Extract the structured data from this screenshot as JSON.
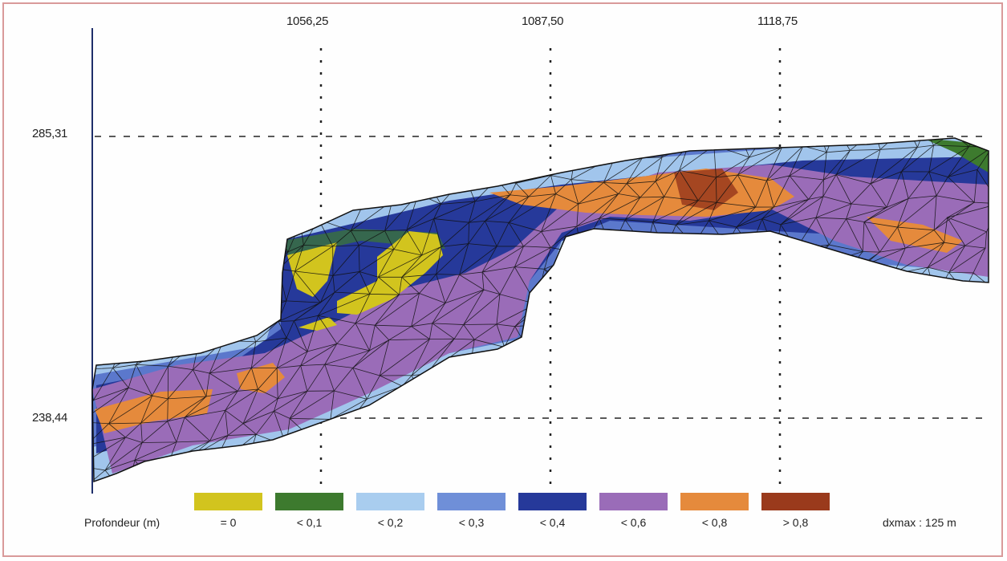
{
  "axes": {
    "x_ticks": [
      "1056,25",
      "1087,50",
      "1118,75"
    ],
    "y_ticks": [
      "285,31",
      "238,44"
    ]
  },
  "legend": {
    "title": "Profondeur (m)",
    "items": [
      {
        "label": "= 0",
        "color": "#d2c41e"
      },
      {
        "label": "< 0,1",
        "color": "#3d7a2e"
      },
      {
        "label": "< 0,2",
        "color": "#a9cdef"
      },
      {
        "label": "< 0,3",
        "color": "#6f8fd8"
      },
      {
        "label": "< 0,4",
        "color": "#26399a"
      },
      {
        "label": "< 0,6",
        "color": "#9a6cb8"
      },
      {
        "label": "< 0,8",
        "color": "#e58a3c"
      },
      {
        "label": "> 0,8",
        "color": "#9a3a1c"
      }
    ]
  },
  "scale_note": "dxmax : 125 m"
}
